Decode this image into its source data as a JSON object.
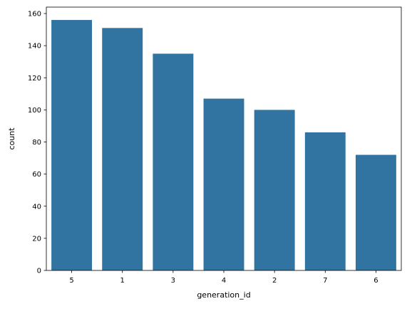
{
  "chart_data": {
    "type": "bar",
    "categories": [
      "5",
      "1",
      "3",
      "4",
      "2",
      "7",
      "6"
    ],
    "values": [
      156,
      151,
      135,
      107,
      100,
      86,
      72
    ],
    "title": "",
    "xlabel": "generation_id",
    "ylabel": "count",
    "ylim": [
      0,
      164
    ],
    "yticks": [
      0,
      20,
      40,
      60,
      80,
      100,
      120,
      140,
      160
    ],
    "bar_color": "#3274a1",
    "grid": false,
    "legend": "none"
  }
}
